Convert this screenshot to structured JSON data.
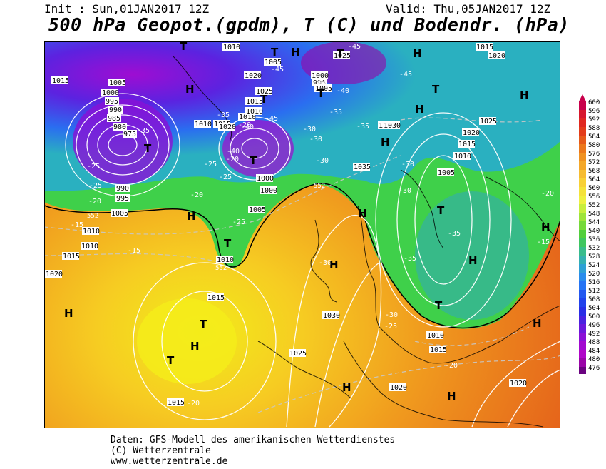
{
  "header": {
    "init": "Init : Sun,01JAN2017 12Z",
    "valid": "Valid: Thu,05JAN2017 12Z",
    "title": "500 hPa Geopot.(gpdm), T (C) und Bodendr. (hPa)"
  },
  "footer": {
    "line1": "Daten: GFS-Modell des amerikanischen Wetterdienstes",
    "line2": "(C) Wetterzentrale",
    "line3": "www.wetterzentrale.de"
  },
  "legend": {
    "values": [
      "600",
      "596",
      "592",
      "588",
      "584",
      "580",
      "576",
      "572",
      "568",
      "564",
      "560",
      "556",
      "552",
      "548",
      "544",
      "540",
      "536",
      "532",
      "528",
      "524",
      "520",
      "516",
      "512",
      "508",
      "504",
      "500",
      "496",
      "492",
      "488",
      "484",
      "480",
      "476"
    ],
    "colors": [
      "#c8004b",
      "#d7182d",
      "#e02820",
      "#e33c1a",
      "#e65a1a",
      "#ec781c",
      "#f09222",
      "#f4a82a",
      "#f6bc32",
      "#f8d036",
      "#f4e23a",
      "#eef040",
      "#c8ee3c",
      "#9ee43a",
      "#76d93a",
      "#52cf3c",
      "#3ec660",
      "#38bc8c",
      "#34b0b0",
      "#2ea0d4",
      "#2a8cec",
      "#2674f4",
      "#2458f0",
      "#2242ec",
      "#2a2ee6",
      "#4a22e0",
      "#6a18dc",
      "#8a10d6",
      "#a20ad0",
      "#b006c8",
      "#9a04a8",
      "#6a0280"
    ]
  },
  "map": {
    "pressure_labels": [
      "1010",
      "1005",
      "1000",
      "995",
      "990",
      "985",
      "980",
      "975",
      "1015",
      "1020",
      "1025",
      "1030",
      "1035",
      "1010",
      "1005",
      "1000",
      "1010",
      "1015",
      "1020",
      "1025",
      "1030",
      "1000",
      "995",
      "1005",
      "1030",
      "1035",
      "1025",
      "1020",
      "1015",
      "1010",
      "1005",
      "1010",
      "1015",
      "1020",
      "1015",
      "1010",
      "1020",
      "1015",
      "1010",
      "1005",
      "1000",
      "995",
      "990",
      "1015",
      "1010",
      "1005",
      "1020",
      "1015",
      "1020",
      "1025",
      "1030",
      "1035",
      "1010",
      "1015",
      "1020",
      "552",
      "552",
      "552",
      "1015",
      "1015",
      "1020"
    ],
    "temp_labels": [
      "-45",
      "-45",
      "-45",
      "-40",
      "-35",
      "-35",
      "-30",
      "-30",
      "-35",
      "-40",
      "-40",
      "-45",
      "-35",
      "-30",
      "-25",
      "-25",
      "-20",
      "-20",
      "-25",
      "-20",
      "-15",
      "-15",
      "-15",
      "-25",
      "-30",
      "-35",
      "-40",
      "-30",
      "-35",
      "-30",
      "-30",
      "-25",
      "-20",
      "-20",
      "-25",
      "-20",
      "-20"
    ],
    "markers": [
      "H",
      "H",
      "H",
      "H",
      "H",
      "H",
      "H",
      "H",
      "H",
      "H",
      "H",
      "H",
      "H",
      "H",
      "H",
      "H",
      "T",
      "T",
      "T",
      "T",
      "T",
      "T",
      "T",
      "T",
      "T",
      "T",
      "T",
      "T",
      "T"
    ]
  }
}
